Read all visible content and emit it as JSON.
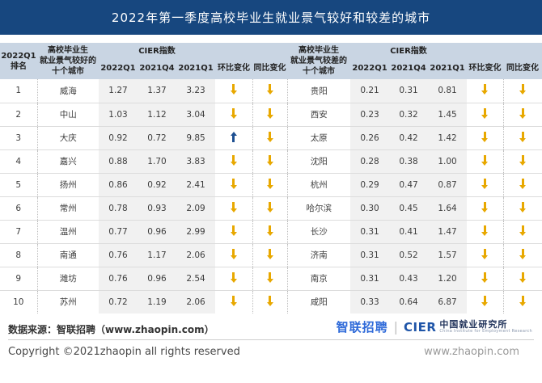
{
  "title": "2022年第一季度高校毕业生就业景气较好和较差的城市",
  "chart_data": {
    "type": "table",
    "title": "2022年第一季度高校毕业生就业景气较好和较差的城市",
    "headers": {
      "rank": "2022Q1\n排名",
      "good_cities": "高校毕业生\n就业景气较好的\n十个城市",
      "bad_cities": "高校毕业生\n就业景气较差的\n十个城市",
      "cier": "CIER指数",
      "periods": [
        "2022Q1",
        "2021Q4",
        "2021Q1"
      ],
      "mom": "环比变化",
      "yoy": "同比变化"
    },
    "rows": [
      {
        "rank": "1",
        "good_city": "威海",
        "good": [
          "1.27",
          "1.37",
          "3.23"
        ],
        "good_mom": "down",
        "good_yoy": "down",
        "bad_city": "贵阳",
        "bad": [
          "0.21",
          "0.31",
          "0.81"
        ],
        "bad_mom": "down",
        "bad_yoy": "down"
      },
      {
        "rank": "2",
        "good_city": "中山",
        "good": [
          "1.03",
          "1.12",
          "3.04"
        ],
        "good_mom": "down",
        "good_yoy": "down",
        "bad_city": "西安",
        "bad": [
          "0.23",
          "0.32",
          "1.45"
        ],
        "bad_mom": "down",
        "bad_yoy": "down"
      },
      {
        "rank": "3",
        "good_city": "大庆",
        "good": [
          "0.92",
          "0.72",
          "9.85"
        ],
        "good_mom": "up",
        "good_yoy": "down",
        "bad_city": "太原",
        "bad": [
          "0.26",
          "0.42",
          "1.42"
        ],
        "bad_mom": "down",
        "bad_yoy": "down"
      },
      {
        "rank": "4",
        "good_city": "嘉兴",
        "good": [
          "0.88",
          "1.70",
          "3.83"
        ],
        "good_mom": "down",
        "good_yoy": "down",
        "bad_city": "沈阳",
        "bad": [
          "0.28",
          "0.38",
          "1.00"
        ],
        "bad_mom": "down",
        "bad_yoy": "down"
      },
      {
        "rank": "5",
        "good_city": "扬州",
        "good": [
          "0.86",
          "0.92",
          "2.41"
        ],
        "good_mom": "down",
        "good_yoy": "down",
        "bad_city": "杭州",
        "bad": [
          "0.29",
          "0.47",
          "0.87"
        ],
        "bad_mom": "down",
        "bad_yoy": "down"
      },
      {
        "rank": "6",
        "good_city": "常州",
        "good": [
          "0.78",
          "0.93",
          "2.09"
        ],
        "good_mom": "down",
        "good_yoy": "down",
        "bad_city": "哈尔滨",
        "bad": [
          "0.30",
          "0.45",
          "1.64"
        ],
        "bad_mom": "down",
        "bad_yoy": "down"
      },
      {
        "rank": "7",
        "good_city": "温州",
        "good": [
          "0.77",
          "0.96",
          "2.99"
        ],
        "good_mom": "down",
        "good_yoy": "down",
        "bad_city": "长沙",
        "bad": [
          "0.31",
          "0.41",
          "1.47"
        ],
        "bad_mom": "down",
        "bad_yoy": "down"
      },
      {
        "rank": "8",
        "good_city": "南通",
        "good": [
          "0.76",
          "1.17",
          "2.06"
        ],
        "good_mom": "down",
        "good_yoy": "down",
        "bad_city": "济南",
        "bad": [
          "0.31",
          "0.52",
          "1.57"
        ],
        "bad_mom": "down",
        "bad_yoy": "down"
      },
      {
        "rank": "9",
        "good_city": "潍坊",
        "good": [
          "0.76",
          "0.96",
          "2.54"
        ],
        "good_mom": "down",
        "good_yoy": "down",
        "bad_city": "南京",
        "bad": [
          "0.31",
          "0.43",
          "1.20"
        ],
        "bad_mom": "down",
        "bad_yoy": "down"
      },
      {
        "rank": "10",
        "good_city": "苏州",
        "good": [
          "0.72",
          "1.19",
          "2.06"
        ],
        "good_mom": "down",
        "good_yoy": "down",
        "bad_city": "咸阳",
        "bad": [
          "0.33",
          "0.64",
          "6.87"
        ],
        "bad_mom": "down",
        "bad_yoy": "down"
      }
    ]
  },
  "footer": {
    "source": "数据来源：智联招聘（www.zhaopin.com）",
    "copyright": "Copyright ©2021zhaopin all rights reserved",
    "watermark": "www.zhaopin.com",
    "logo": {
      "zhaopin": "智联招聘",
      "divider": "|",
      "cier": "CIER",
      "institute": "中国就业研究所",
      "institute_en": "China Institute for Employment Research"
    }
  },
  "colors": {
    "title_bar": "#17477f",
    "header_bg": "#c9d5e3",
    "value_band": "#f1f1f1",
    "arrow_down": "#e8a800",
    "arrow_up": "#1d4f91",
    "logo_blue": "#2f6ad9"
  }
}
